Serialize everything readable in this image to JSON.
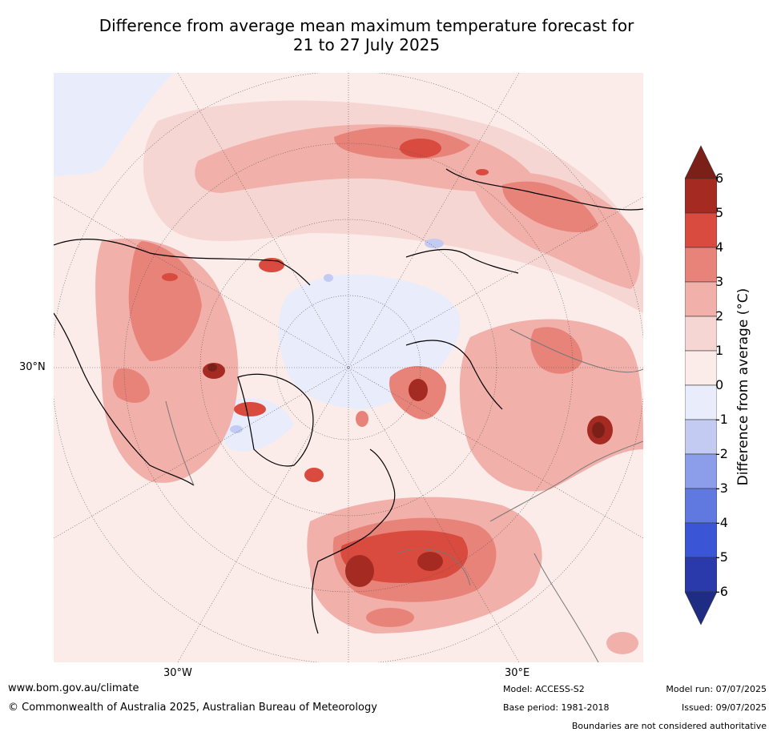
{
  "title": {
    "line1": "Difference from average mean maximum temperature forecast for",
    "line2": "21 to 27 July 2025"
  },
  "map_labels": {
    "lat_30n": "30°N",
    "lon_30w": "30°W",
    "lon_30e": "30°E"
  },
  "colorbar": {
    "label": "Difference from average (°C)",
    "ticks": [
      "6",
      "5",
      "4",
      "3",
      "2",
      "1",
      "0",
      "-1",
      "-2",
      "-3",
      "-4",
      "-5",
      "-6"
    ],
    "colors": {
      "above_6": "#7b2018",
      "5_6": "#a52b22",
      "4_5": "#d94b3f",
      "3_4": "#e8837a",
      "2_3": "#f1b0aa",
      "1_2": "#f6d6d2",
      "0_1": "#fbecea",
      "m1_0": "#e8ecfb",
      "m2_m1": "#c3cbf2",
      "m3_m2": "#8c9de9",
      "m4_m3": "#5f79e0",
      "m5_m4": "#3a56d6",
      "m6_m5": "#2b3aab",
      "below_m6": "#1f2c84"
    }
  },
  "footer": {
    "website": "www.bom.gov.au/climate",
    "copyright": "© Commonwealth of Australia 2025, Australian Bureau of Meteorology",
    "model": "Model: ACCESS-S2",
    "base_period": "Base period: 1981-2018",
    "model_run": "Model run: 07/07/2025",
    "issued": "Issued: 09/07/2025",
    "disclaimer": "Boundaries are not considered authoritative"
  }
}
